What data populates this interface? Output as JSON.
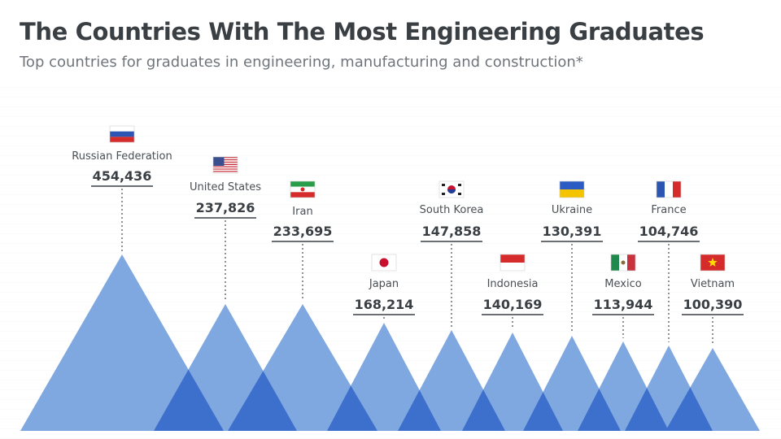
{
  "header": {
    "title": "The Countries With The Most Engineering Graduates",
    "subtitle": "Top countries for graduates in engineering, manufacturing and construction*"
  },
  "colors": {
    "mountain": "#7fa8e0",
    "overlap": "#3d6fcc",
    "text": "#3a3f44"
  },
  "chart_data": {
    "type": "area",
    "categories": [
      "Russian Federation",
      "United States",
      "Iran",
      "Japan",
      "South Korea",
      "Indonesia",
      "Ukraine",
      "Mexico",
      "France",
      "Vietnam"
    ],
    "values": [
      454436,
      237826,
      233695,
      168214,
      147858,
      140169,
      130391,
      113944,
      104746,
      100390
    ],
    "value_labels": [
      "454,436",
      "237,826",
      "233,695",
      "168,214",
      "147,858",
      "140,169",
      "130,391",
      "113,944",
      "104,746",
      "100,390"
    ],
    "flags": [
      "russia-flag-icon",
      "usa-flag-icon",
      "iran-flag-icon",
      "japan-flag-icon",
      "south-korea-flag-icon",
      "indonesia-flag-icon",
      "ukraine-flag-icon",
      "mexico-flag-icon",
      "france-flag-icon",
      "vietnam-flag-icon"
    ],
    "ylim": [
      0,
      454436
    ]
  }
}
